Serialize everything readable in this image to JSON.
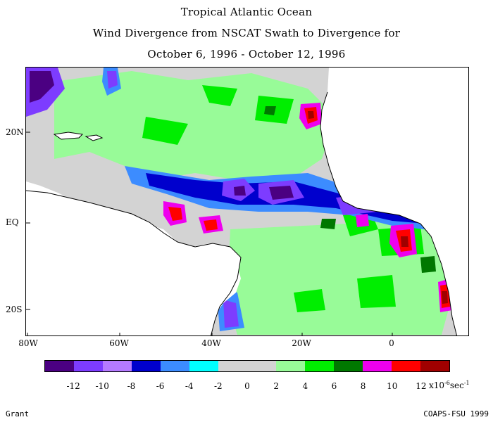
{
  "title": {
    "line1": "Tropical Atlantic Ocean",
    "line2": "Wind Divergence from NSCAT Swath to Divergence for",
    "line3": "October 6, 1996 - October 12, 1996"
  },
  "axes": {
    "lat_ticks": [
      "20N",
      "EQ",
      "20S"
    ],
    "lon_ticks": [
      "80W",
      "60W",
      "40W",
      "20W",
      "0"
    ]
  },
  "colorbar": {
    "colors": [
      "#4b0082",
      "#7d3cff",
      "#b57aff",
      "#0000cd",
      "#3c8cff",
      "#00ffff",
      "#d3d3d3",
      "#d3d3d3",
      "#98fb98",
      "#00ee00",
      "#007800",
      "#ee00ee",
      "#ff0000",
      "#a00000"
    ],
    "labels": [
      "-12",
      "-10",
      "-8",
      "-6",
      "-4",
      "-2",
      "0",
      "2",
      "4",
      "6",
      "8",
      "10",
      "12"
    ],
    "units_prefix": "x10",
    "units_exp": "-6",
    "units_suffix": "sec",
    "units_suffix_exp": "-1"
  },
  "palette": {
    "ocean": "#d3d3d3",
    "land": "#ffffff",
    "coast": "#000000"
  },
  "footer": {
    "left": "Grant",
    "right": "COAPS-FSU 1999"
  }
}
